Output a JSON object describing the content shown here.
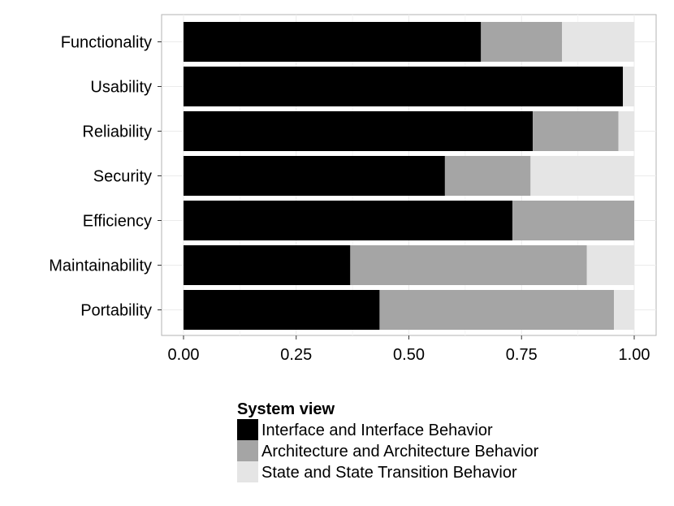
{
  "chart_data": {
    "type": "bar",
    "orientation": "horizontal",
    "stacked": true,
    "categories": [
      "Functionality",
      "Usability",
      "Reliability",
      "Security",
      "Efficiency",
      "Maintainability",
      "Portability"
    ],
    "series": [
      {
        "name": "Interface and Interface Behavior",
        "color": "#000000",
        "values": [
          0.66,
          0.975,
          0.775,
          0.58,
          0.73,
          0.37,
          0.435
        ]
      },
      {
        "name": "Architecture and Architecture Behavior",
        "color": "#a5a5a5",
        "values": [
          0.18,
          0.0,
          0.19,
          0.19,
          0.27,
          0.525,
          0.52
        ]
      },
      {
        "name": "State and State Transition Behavior",
        "color": "#e5e5e5",
        "values": [
          0.16,
          0.025,
          0.035,
          0.23,
          0.0,
          0.105,
          0.045
        ]
      }
    ],
    "xlim": [
      0,
      1
    ],
    "xticks": [
      0.0,
      0.25,
      0.5,
      0.75,
      1.0
    ],
    "xtick_labels": [
      "0.00",
      "0.25",
      "0.50",
      "0.75",
      "1.00"
    ],
    "xlabel": "",
    "ylabel": "",
    "grid": true,
    "legend": {
      "title": "System view",
      "position": "bottom"
    }
  }
}
